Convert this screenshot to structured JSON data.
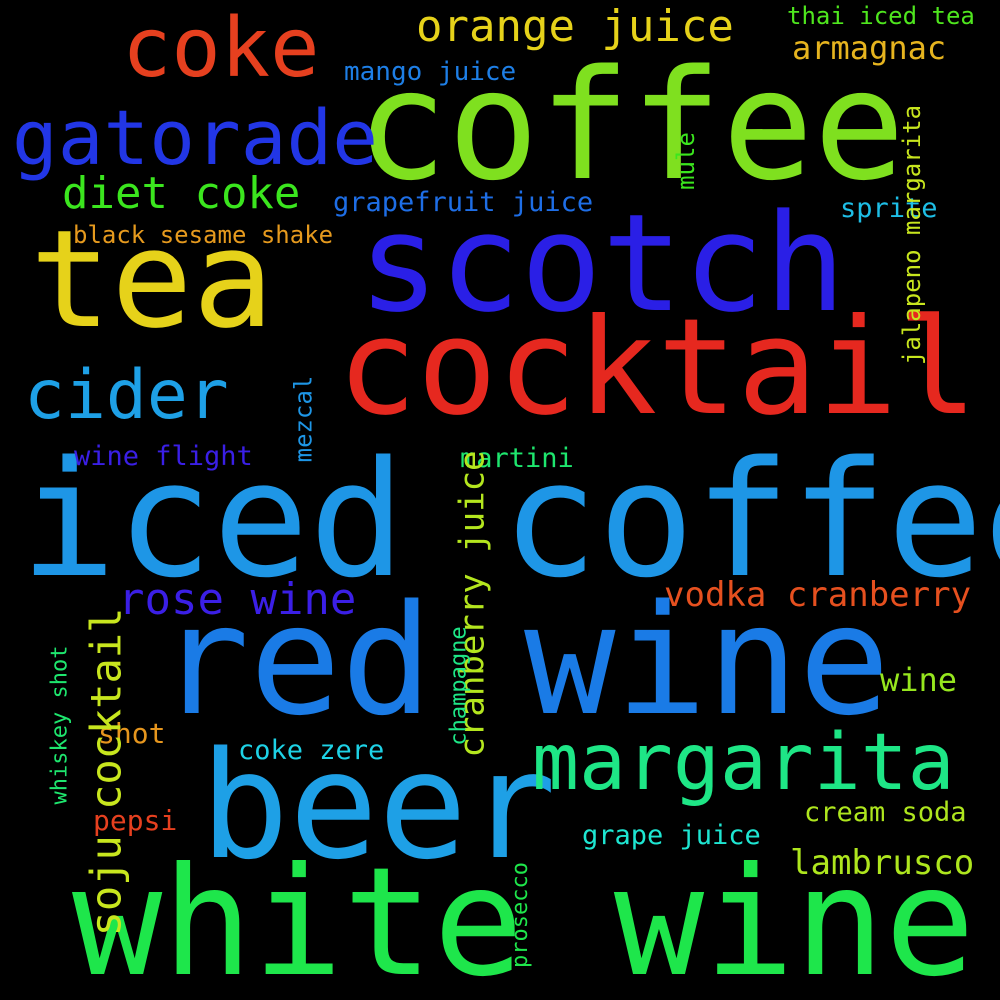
{
  "words": {
    "coffee": {
      "text": "coffee",
      "color": "#7fe01f"
    },
    "scotch": {
      "text": "scotch",
      "color": "#2a1fe6"
    },
    "cocktail": {
      "text": "cocktail",
      "color": "#e6281f"
    },
    "tea": {
      "text": "tea",
      "color": "#e6d21a"
    },
    "iced_coffee": {
      "text": "iced coffee",
      "color": "#1e96e6"
    },
    "red_wine": {
      "text": "red wine",
      "color": "#1a7be6"
    },
    "beer": {
      "text": "beer",
      "color": "#1ea0e6"
    },
    "white_wine": {
      "text": "white wine",
      "color": "#1ee64b"
    },
    "margarita": {
      "text": "margarita",
      "color": "#1ee686"
    },
    "coke": {
      "text": "coke",
      "color": "#e6401f"
    },
    "gatorade": {
      "text": "gatorade",
      "color": "#2236e6"
    },
    "cider": {
      "text": "cider",
      "color": "#1ea0e6"
    },
    "orange_juice": {
      "text": "orange juice",
      "color": "#e6d21a"
    },
    "diet_coke": {
      "text": "diet coke",
      "color": "#3be61e"
    },
    "rose_wine": {
      "text": "rose wine",
      "color": "#3b1fe6"
    },
    "vodka_cranberry": {
      "text": "vodka cranberry",
      "color": "#e6501f"
    },
    "lambrusco": {
      "text": "lambrusco",
      "color": "#aee61e"
    },
    "armagnac": {
      "text": "armagnac",
      "color": "#e6b41f"
    },
    "wine": {
      "text": "wine",
      "color": "#96e61e"
    },
    "mango_juice": {
      "text": "mango juice",
      "color": "#1e7fe6"
    },
    "thai_iced_tea": {
      "text": "thai iced tea",
      "color": "#4fe61e"
    },
    "grapefruit_juice": {
      "text": "grapefruit juice",
      "color": "#1e6ee6"
    },
    "black_sesame_shake": {
      "text": "black sesame shake",
      "color": "#e69a1e"
    },
    "sprite": {
      "text": "sprite",
      "color": "#1ebee6"
    },
    "wine_flight": {
      "text": "wine flight",
      "color": "#3a1fe6"
    },
    "martini": {
      "text": "martini",
      "color": "#1ee66e"
    },
    "shot": {
      "text": "shot",
      "color": "#e6961e"
    },
    "coke_zere": {
      "text": "coke zere",
      "color": "#1ed2e6"
    },
    "pepsi": {
      "text": "pepsi",
      "color": "#e6401f"
    },
    "grape_juice": {
      "text": "grape juice",
      "color": "#1ee6d2"
    },
    "cream_soda": {
      "text": "cream soda",
      "color": "#aee61e"
    },
    "jalapeno_margarita": {
      "text": "jalapeno margarita",
      "color": "#c8e61e"
    },
    "mule": {
      "text": "mule",
      "color": "#3be61e"
    },
    "mezcal": {
      "text": "mezcal",
      "color": "#1e96e6"
    },
    "cranberry_juice": {
      "text": "cranberry juice",
      "color": "#b4e61e"
    },
    "soju_cocktail": {
      "text": "soju cocktail",
      "color": "#c8e61e"
    },
    "whiskey_shot": {
      "text": "whiskey shot",
      "color": "#1ee66e"
    },
    "champagne": {
      "text": "champagne",
      "color": "#1ee686"
    },
    "prosecco": {
      "text": "prosecco",
      "color": "#1ee64b"
    }
  }
}
